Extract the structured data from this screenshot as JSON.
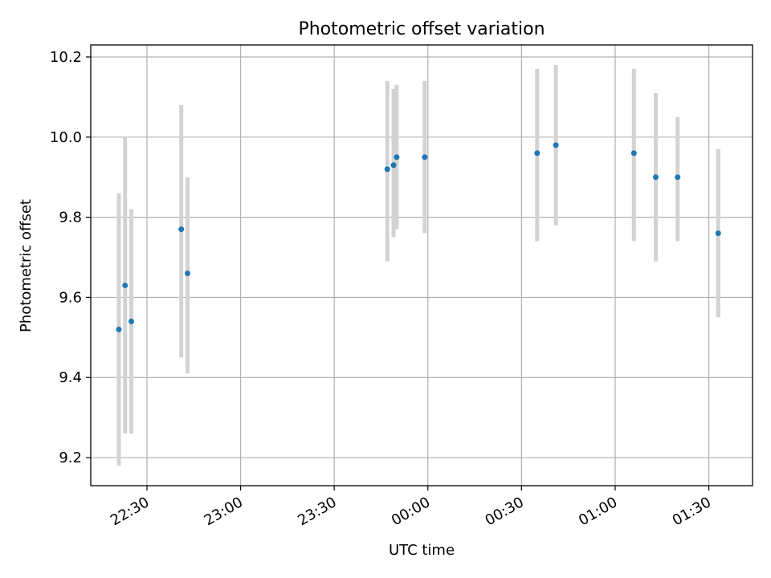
{
  "chart_data": {
    "type": "scatter",
    "title": "Photometric offset variation",
    "xlabel": "UTC time",
    "ylabel": "Photometric offset",
    "x_unit": "UTC time (HH:MM)",
    "xlim": [
      "22:12",
      "01:44"
    ],
    "ylim": [
      9.13,
      10.23
    ],
    "x_ticks": [
      "22:30",
      "23:00",
      "23:30",
      "00:00",
      "00:30",
      "01:00",
      "01:30"
    ],
    "y_ticks": [
      9.2,
      9.4,
      9.6,
      9.8,
      10.0,
      10.2
    ],
    "grid": true,
    "colors": {
      "marker": "#1f77b4",
      "errorbar": "#d3d3d3",
      "grid": "#b0b0b0"
    },
    "points": [
      {
        "x": "22:21",
        "y": 9.52,
        "ylow": 9.18,
        "yhigh": 9.86
      },
      {
        "x": "22:23",
        "y": 9.63,
        "ylow": 9.26,
        "yhigh": 10.0
      },
      {
        "x": "22:25",
        "y": 9.54,
        "ylow": 9.26,
        "yhigh": 9.82
      },
      {
        "x": "22:41",
        "y": 9.77,
        "ylow": 9.45,
        "yhigh": 10.08
      },
      {
        "x": "22:43",
        "y": 9.66,
        "ylow": 9.41,
        "yhigh": 9.9
      },
      {
        "x": "23:47",
        "y": 9.92,
        "ylow": 9.69,
        "yhigh": 10.14
      },
      {
        "x": "23:49",
        "y": 9.93,
        "ylow": 9.75,
        "yhigh": 10.12
      },
      {
        "x": "23:50",
        "y": 9.95,
        "ylow": 9.77,
        "yhigh": 10.13
      },
      {
        "x": "23:59",
        "y": 9.95,
        "ylow": 9.76,
        "yhigh": 10.14
      },
      {
        "x": "00:35",
        "y": 9.96,
        "ylow": 9.74,
        "yhigh": 10.17
      },
      {
        "x": "00:41",
        "y": 9.98,
        "ylow": 9.78,
        "yhigh": 10.18
      },
      {
        "x": "01:06",
        "y": 9.96,
        "ylow": 9.74,
        "yhigh": 10.17
      },
      {
        "x": "01:13",
        "y": 9.9,
        "ylow": 9.69,
        "yhigh": 10.11
      },
      {
        "x": "01:20",
        "y": 9.9,
        "ylow": 9.74,
        "yhigh": 10.05
      },
      {
        "x": "01:33",
        "y": 9.76,
        "ylow": 9.55,
        "yhigh": 9.97
      }
    ]
  }
}
